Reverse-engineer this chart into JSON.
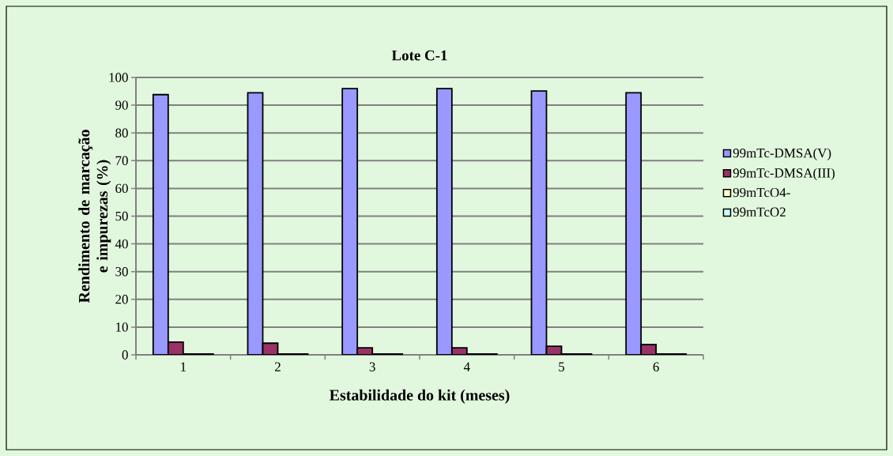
{
  "chart_data": {
    "type": "bar",
    "title": "Lote C-1",
    "xlabel": "Estabilidade do kit (meses)",
    "ylabel": "Rendimento de marcação e impurezas (%)",
    "categories": [
      "1",
      "2",
      "3",
      "4",
      "5",
      "6"
    ],
    "series": [
      {
        "name": "99mTc-DMSA(V)",
        "color": "#9999ff",
        "values": [
          93.8,
          94.5,
          96.0,
          96.0,
          95.1,
          94.5
        ]
      },
      {
        "name": "99mTc-DMSA(III)",
        "color": "#993366",
        "values": [
          4.6,
          4.2,
          2.5,
          2.5,
          3.1,
          3.7
        ]
      },
      {
        "name": "99mTcO4-",
        "color": "#ffffcc",
        "values": [
          0.3,
          0.3,
          0.3,
          0.3,
          0.3,
          0.3
        ]
      },
      {
        "name": "99mTcO2",
        "color": "#ccffff",
        "values": [
          0.3,
          0.3,
          0.3,
          0.3,
          0.3,
          0.3
        ]
      }
    ],
    "ylim": [
      0,
      100
    ],
    "yticks": [
      0,
      10,
      20,
      30,
      40,
      50,
      60,
      70,
      80,
      90,
      100
    ],
    "grid": "y",
    "legend": "right"
  }
}
